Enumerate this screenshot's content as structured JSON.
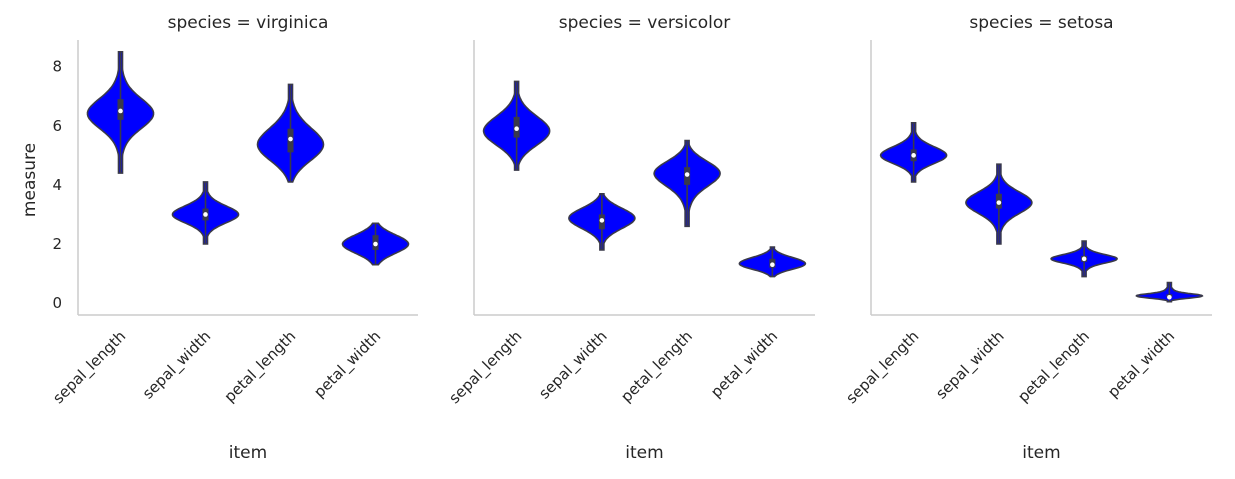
{
  "chart_data": {
    "type": "violin",
    "colors": {
      "violin_fill": "#0000ff",
      "violin_edge": "#3a3a4a",
      "median_dot": "#ffffff",
      "axis": "#cccccc",
      "text": "#262626"
    },
    "ylabel": "measure",
    "xlabel": "item",
    "yticks": [
      0,
      2,
      4,
      6,
      8
    ],
    "ylim": [
      -0.4,
      8.9
    ],
    "categories": [
      "sepal_length",
      "sepal_width",
      "petal_length",
      "petal_width"
    ],
    "grid": false,
    "legend": "none",
    "facets": [
      {
        "title": "species = virginica",
        "violins": [
          {
            "category": "sepal_length",
            "min": 4.4,
            "q1": 6.2,
            "median": 6.5,
            "q3": 6.9,
            "max": 8.5,
            "mode": 6.4
          },
          {
            "category": "sepal_width",
            "min": 2.0,
            "q1": 2.8,
            "median": 3.0,
            "q3": 3.2,
            "max": 4.1,
            "mode": 3.0
          },
          {
            "category": "petal_length",
            "min": 4.1,
            "q1": 5.1,
            "median": 5.55,
            "q3": 5.9,
            "max": 7.4,
            "mode": 5.3
          },
          {
            "category": "petal_width",
            "min": 1.3,
            "q1": 1.8,
            "median": 2.0,
            "q3": 2.3,
            "max": 2.7,
            "mode": 2.0
          }
        ]
      },
      {
        "title": "species = versicolor",
        "violins": [
          {
            "category": "sepal_length",
            "min": 4.5,
            "q1": 5.6,
            "median": 5.9,
            "q3": 6.3,
            "max": 7.5,
            "mode": 5.8
          },
          {
            "category": "sepal_width",
            "min": 1.8,
            "q1": 2.5,
            "median": 2.8,
            "q3": 3.0,
            "max": 3.7,
            "mode": 2.9
          },
          {
            "category": "petal_length",
            "min": 2.6,
            "q1": 4.0,
            "median": 4.35,
            "q3": 4.6,
            "max": 5.5,
            "mode": 4.4
          },
          {
            "category": "petal_width",
            "min": 0.9,
            "q1": 1.2,
            "median": 1.3,
            "q3": 1.5,
            "max": 1.9,
            "mode": 1.35
          }
        ]
      },
      {
        "title": "species = setosa",
        "violins": [
          {
            "category": "sepal_length",
            "min": 4.1,
            "q1": 4.8,
            "median": 5.0,
            "q3": 5.2,
            "max": 6.1,
            "mode": 5.0
          },
          {
            "category": "sepal_width",
            "min": 2.0,
            "q1": 3.2,
            "median": 3.4,
            "q3": 3.7,
            "max": 4.7,
            "mode": 3.4
          },
          {
            "category": "petal_length",
            "min": 0.9,
            "q1": 1.4,
            "median": 1.5,
            "q3": 1.6,
            "max": 2.1,
            "mode": 1.5
          },
          {
            "category": "petal_width",
            "min": 0.05,
            "q1": 0.2,
            "median": 0.2,
            "q3": 0.3,
            "max": 0.7,
            "mode": 0.25
          }
        ]
      }
    ]
  }
}
